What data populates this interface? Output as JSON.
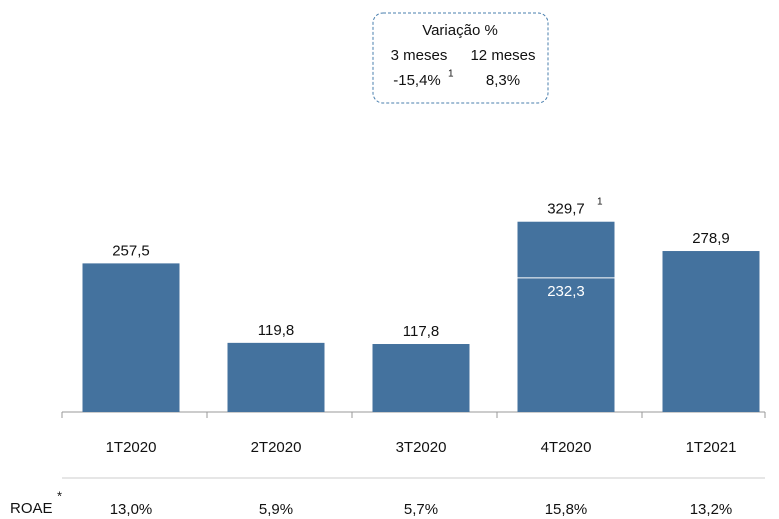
{
  "chart_data": {
    "type": "bar",
    "categories": [
      "1T2020",
      "2T2020",
      "3T2020",
      "4T2020",
      "1T2021"
    ],
    "values": [
      257.5,
      119.8,
      117.8,
      329.7,
      278.9
    ],
    "value_labels": [
      "257,5",
      "119,8",
      "117,8",
      "329,7",
      "278,9"
    ],
    "value_footnotes": [
      null,
      null,
      null,
      "1",
      null
    ],
    "inner_values": [
      null,
      null,
      null,
      232.3,
      null
    ],
    "inner_value_labels": [
      null,
      null,
      null,
      "232,3",
      null
    ],
    "color": "#44729e",
    "ylim": [
      0,
      350
    ],
    "box": {
      "title": "Variação %",
      "col1": "3 meses",
      "col2": "12 meses",
      "val1": "-15,4%",
      "val1_footnote": "1",
      "val2": "8,3%"
    },
    "roae": {
      "label": "ROAE",
      "marker": "*",
      "labels": [
        "13,0%",
        "5,9%",
        "5,7%",
        "15,8%",
        "13,2%"
      ]
    }
  }
}
